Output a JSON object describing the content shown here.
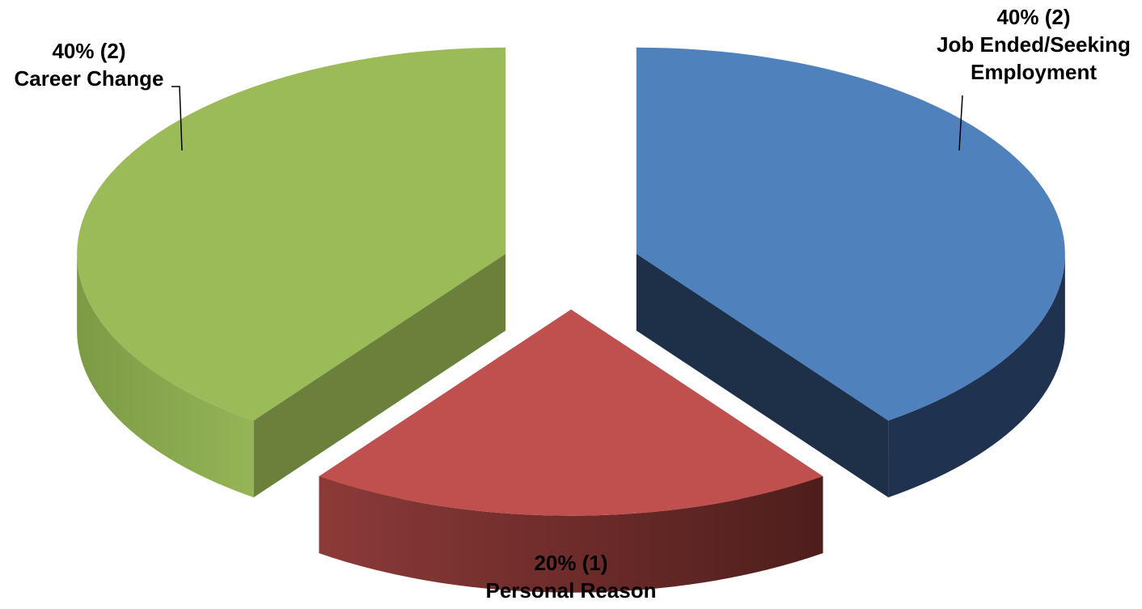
{
  "chart_data": {
    "type": "pie",
    "style": "3d-exploded",
    "title": "",
    "legend": "none",
    "slices": [
      {
        "label": "Job Ended/Seeking Employment",
        "label_lines": [
          "40% (2)",
          "Job Ended/Seeking",
          "Employment"
        ],
        "value": 2,
        "percent": 40,
        "color": "#4F81BD",
        "side_color": "#1F3250"
      },
      {
        "label": "Personal Reason",
        "label_lines": [
          "20% (1)",
          "Personal Reason"
        ],
        "value": 1,
        "percent": 20,
        "color": "#C0504D",
        "side_color": "#6E2A2A"
      },
      {
        "label": "Career Change",
        "label_lines": [
          "40% (2)",
          "Career Change"
        ],
        "value": 2,
        "percent": 40,
        "color": "#9BBB59",
        "side_color": "#6B803A"
      }
    ]
  }
}
